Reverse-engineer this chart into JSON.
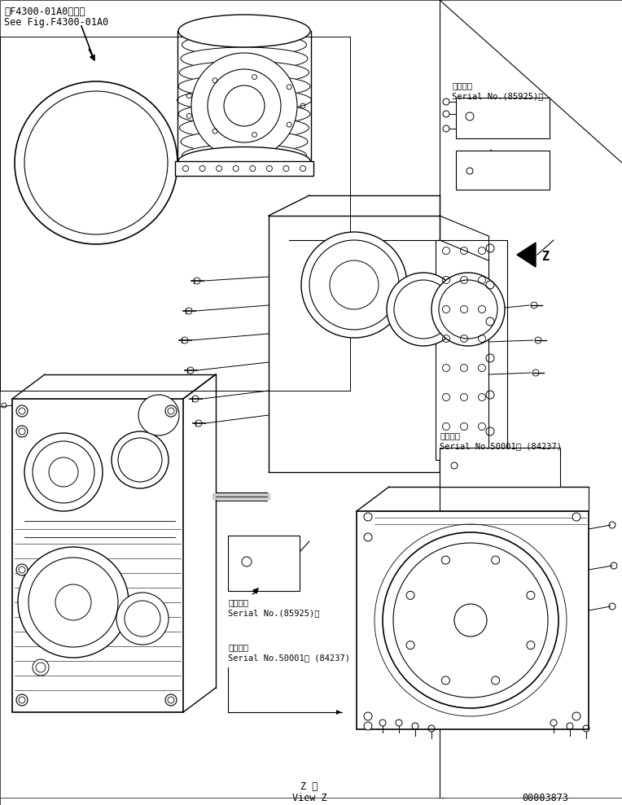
{
  "title_line1": "第F4300-01A0図参照",
  "title_line2": "See Fig.F4300-01A0",
  "serial_top_line1": "適用号機",
  "serial_top_line2": "Serial No.(85925)～",
  "serial_mid_line1": "適用号機",
  "serial_mid_line2": "Serial No.50001～ (84237)",
  "serial_bot1_line1": "適用号機",
  "serial_bot1_line2": "Serial No.(85925)～",
  "serial_bot2_line1": "適用号機",
  "serial_bot2_line2": "Serial No.50001～ (84237)",
  "bottom_center1": "Z 視",
  "bottom_center2": "View Z",
  "bottom_dash": "-",
  "bottom_right": "00003873",
  "bg_color": "#ffffff",
  "lc": "#000000",
  "fig_width": 7.64,
  "fig_height": 9.89,
  "dpi": 100
}
